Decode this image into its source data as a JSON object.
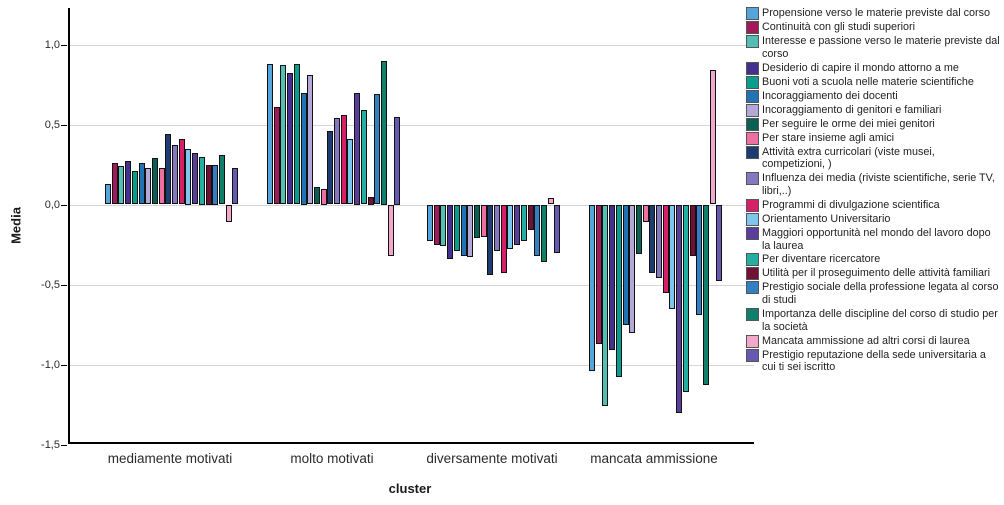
{
  "chart_data": {
    "type": "bar",
    "title": "",
    "xlabel": "cluster",
    "ylabel": "Media",
    "ylim": [
      -1.5,
      1.25
    ],
    "grid": true,
    "legend_position": "right",
    "yticks": [
      {
        "value": 1.0,
        "label": "1,0"
      },
      {
        "value": 0.5,
        "label": "0,5"
      },
      {
        "value": 0.0,
        "label": "0,0"
      },
      {
        "value": -0.5,
        "label": "-0,5"
      },
      {
        "value": -1.0,
        "label": "-1,0"
      },
      {
        "value": -1.5,
        "label": "-1,5"
      }
    ],
    "categories": [
      "mediamente motivati",
      "molto motivati",
      "diversamente motivati",
      "mancata ammissione"
    ],
    "series": [
      {
        "name": "Propensione verso le materie previste dal corso",
        "color": "#56A5DA",
        "values": [
          0.13,
          0.88,
          -0.23,
          -1.04
        ]
      },
      {
        "name": "Continuità con gli studi superiori",
        "color": "#A31A5A",
        "values": [
          0.26,
          0.61,
          -0.25,
          -0.87
        ]
      },
      {
        "name": "Interesse e passione verso le materie previste dal corso",
        "color": "#53BEB4",
        "values": [
          0.24,
          0.87,
          -0.26,
          -1.26
        ]
      },
      {
        "name": "Desiderio di capire il mondo attorno a me",
        "color": "#44308E",
        "values": [
          0.27,
          0.82,
          -0.34,
          -0.91
        ]
      },
      {
        "name": "Buoni voti a scuola nelle materie scientifiche",
        "color": "#089E8E",
        "values": [
          0.21,
          0.88,
          -0.29,
          -1.08
        ]
      },
      {
        "name": "Incoraggiamento dei docenti",
        "color": "#2173B4",
        "values": [
          0.26,
          0.7,
          -0.32,
          -0.75
        ]
      },
      {
        "name": "Incoraggiamento di genitori e familiari",
        "color": "#B4A8D8",
        "values": [
          0.23,
          0.81,
          -0.33,
          -0.8
        ]
      },
      {
        "name": "Per seguire le orme dei miei genitori",
        "color": "#0C5F53",
        "values": [
          0.29,
          0.11,
          -0.21,
          -0.31
        ]
      },
      {
        "name": "Per stare insieme agli amici",
        "color": "#EE6FA0",
        "values": [
          0.23,
          0.1,
          -0.2,
          -0.11
        ]
      },
      {
        "name": "Attività extra curricolari (viste musei, competizioni, )",
        "color": "#1D3C6F",
        "values": [
          0.44,
          0.46,
          -0.44,
          -0.43
        ]
      },
      {
        "name": "Influenza dei media (riviste scientifiche, serie TV, libri,..)",
        "color": "#8578C1",
        "values": [
          0.37,
          0.54,
          -0.29,
          -0.46
        ]
      },
      {
        "name": "Programmi di divulgazione scientifica",
        "color": "#D62169",
        "values": [
          0.41,
          0.56,
          -0.43,
          -0.55
        ]
      },
      {
        "name": "Orientamento Universitario",
        "color": "#7EC6EE",
        "values": [
          0.35,
          0.41,
          -0.28,
          -0.65
        ]
      },
      {
        "name": "Maggiori opportunità nel mondo del lavoro dopo la laurea",
        "color": "#5A3E9B",
        "values": [
          0.32,
          0.7,
          -0.25,
          -1.3
        ]
      },
      {
        "name": "Per diventare ricercatore",
        "color": "#23AFA2",
        "values": [
          0.3,
          0.59,
          -0.23,
          -1.17
        ]
      },
      {
        "name": "Utilità per il proseguimento delle attività familiari",
        "color": "#701236",
        "values": [
          0.25,
          0.05,
          -0.16,
          -0.32
        ]
      },
      {
        "name": "Prestigio sociale della professione legata al corso di studi",
        "color": "#3180C3",
        "values": [
          0.25,
          0.69,
          -0.32,
          -0.69
        ]
      },
      {
        "name": "Importanza delle discipline del corso di studio per la società",
        "color": "#10806B",
        "values": [
          0.31,
          0.9,
          -0.36,
          -1.13
        ]
      },
      {
        "name": "Mancata ammissione ad altri corsi di laurea",
        "color": "#F2A9C9",
        "values": [
          -0.11,
          -0.32,
          0.04,
          0.84
        ]
      },
      {
        "name": "Prestigio reputazione della sede universitaria a cui ti sei iscritto",
        "color": "#6659B2",
        "values": [
          0.23,
          0.55,
          -0.3,
          -0.48
        ]
      }
    ]
  }
}
